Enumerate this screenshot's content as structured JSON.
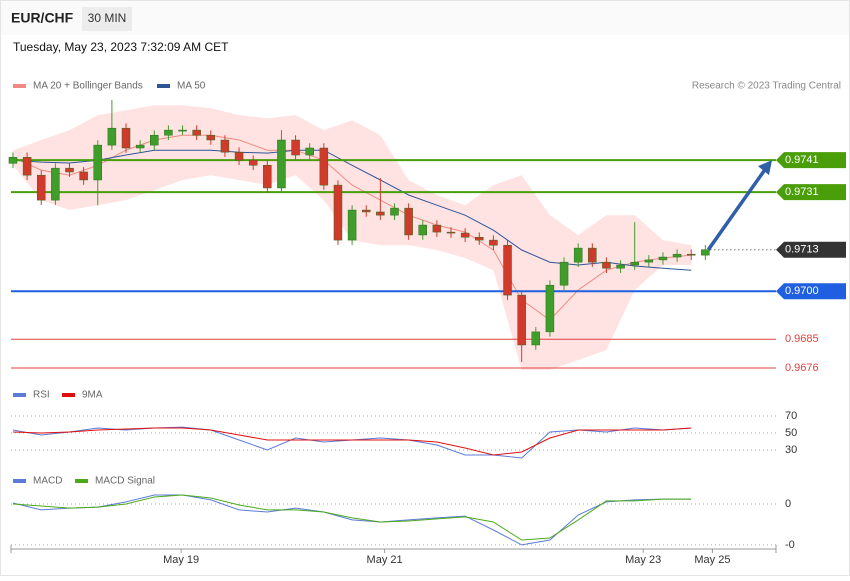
{
  "header": {
    "symbol": "EUR/CHF",
    "timeframe": "30 MIN",
    "timestamp": "Tuesday, May 23, 2023 7:32:09 AM CET",
    "credit": "Research © 2023 Trading Central"
  },
  "chart_data": [
    {
      "type": "candlestick",
      "xlim": [
        -0.14,
        54
      ],
      "xticks": [
        {
          "value": 11.9,
          "label": "May 19"
        },
        {
          "value": 26.3,
          "label": "May 21"
        },
        {
          "value": 44.6,
          "label": "May 23"
        },
        {
          "value": 49.5,
          "label": "May 25"
        }
      ],
      "ylim": [
        0.9673,
        0.9762
      ],
      "up_color": "#3f9e2a",
      "down_color": "#d03a2a",
      "open": [
        0.974,
        0.97419,
        0.97363,
        0.97285,
        0.97385,
        0.97373,
        0.97348,
        0.97457,
        0.9751,
        0.97448,
        0.97457,
        0.97488,
        0.97504,
        0.97504,
        0.97488,
        0.97473,
        0.97435,
        0.9741,
        0.97394,
        0.97323,
        0.97473,
        0.97426,
        0.97448,
        0.97332,
        0.9716,
        0.97254,
        0.97248,
        0.97238,
        0.9726,
        0.97176,
        0.97207,
        0.97185,
        0.97182,
        0.97169,
        0.9716,
        0.97144,
        0.96988,
        0.96832,
        0.96873,
        0.97019,
        0.97091,
        0.97135,
        0.97091,
        0.97072,
        0.97082,
        0.97091,
        0.97098,
        0.97107,
        0.97116,
        0.97113
      ],
      "high": [
        0.97434,
        0.97434,
        0.97378,
        0.974,
        0.974,
        0.97388,
        0.97472,
        0.97598,
        0.97525,
        0.97472,
        0.97503,
        0.97519,
        0.97519,
        0.97519,
        0.97503,
        0.97488,
        0.9745,
        0.97425,
        0.97409,
        0.97504,
        0.97488,
        0.97463,
        0.97463,
        0.97347,
        0.97269,
        0.97269,
        0.97354,
        0.97275,
        0.97275,
        0.97222,
        0.97222,
        0.972,
        0.97197,
        0.97184,
        0.97175,
        0.97159,
        0.97003,
        0.96888,
        0.97034,
        0.97106,
        0.9715,
        0.9715,
        0.97106,
        0.97097,
        0.97216,
        0.97113,
        0.97122,
        0.97131,
        0.97131,
        0.97145
      ],
      "low": [
        0.97385,
        0.97348,
        0.9727,
        0.9727,
        0.97358,
        0.97333,
        0.97269,
        0.97442,
        0.97433,
        0.97433,
        0.97442,
        0.97473,
        0.97489,
        0.97473,
        0.97458,
        0.9742,
        0.97395,
        0.97379,
        0.97308,
        0.97308,
        0.97411,
        0.97411,
        0.97317,
        0.97145,
        0.97145,
        0.97233,
        0.97223,
        0.97223,
        0.97161,
        0.97161,
        0.9717,
        0.97167,
        0.97154,
        0.97145,
        0.97129,
        0.96973,
        0.96779,
        0.96817,
        0.96858,
        0.97004,
        0.97076,
        0.97076,
        0.97057,
        0.97057,
        0.97067,
        0.97076,
        0.97083,
        0.97092,
        0.97098,
        0.97098
      ],
      "close": [
        0.97419,
        0.97363,
        0.97285,
        0.97385,
        0.97373,
        0.97348,
        0.97457,
        0.9751,
        0.97448,
        0.97457,
        0.97488,
        0.97504,
        0.97504,
        0.97488,
        0.97473,
        0.97435,
        0.9741,
        0.97394,
        0.97323,
        0.97473,
        0.97426,
        0.97448,
        0.97332,
        0.9716,
        0.97254,
        0.97248,
        0.97238,
        0.9726,
        0.97176,
        0.97207,
        0.97185,
        0.97182,
        0.97169,
        0.9716,
        0.97144,
        0.96988,
        0.96832,
        0.96873,
        0.97019,
        0.97091,
        0.97135,
        0.97091,
        0.97072,
        0.97082,
        0.97091,
        0.97098,
        0.97107,
        0.97116,
        0.97113,
        0.9713
      ],
      "overlays": {
        "x": [
          0,
          2,
          4,
          6,
          8,
          10,
          12,
          14,
          16,
          18,
          20,
          22,
          24,
          26,
          28,
          30,
          32,
          34,
          36,
          38,
          40,
          42,
          44,
          46,
          48
        ],
        "series": [
          {
            "name": "MA 20 + Bollinger Bands",
            "color": "#f08a80",
            "band_color": "#ffe3e3",
            "values": [
              0.97419,
              0.97379,
              0.97363,
              0.97394,
              0.97441,
              0.97473,
              0.97488,
              0.97488,
              0.97473,
              0.97441,
              0.97441,
              0.9741,
              0.97332,
              0.97285,
              0.97238,
              0.97207,
              0.97185,
              0.97129,
              0.96973,
              0.9691,
              0.97004,
              0.97066,
              0.97091,
              0.97104,
              0.97113
            ],
            "upper": [
              0.97441,
              0.97473,
              0.97504,
              0.97551,
              0.97566,
              0.97582,
              0.97582,
              0.97572,
              0.97551,
              0.97541,
              0.97551,
              0.97504,
              0.97535,
              0.97488,
              0.97348,
              0.97301,
              0.97269,
              0.97332,
              0.97363,
              0.97238,
              0.97176,
              0.97238,
              0.97238,
              0.9716,
              0.97144
            ],
            "lower": [
              0.97394,
              0.97285,
              0.97254,
              0.97269,
              0.97285,
              0.97316,
              0.97348,
              0.97363,
              0.97348,
              0.97332,
              0.97363,
              0.97285,
              0.9716,
              0.97144,
              0.97144,
              0.97129,
              0.97104,
              0.97066,
              0.96754,
              0.96754,
              0.96785,
              0.96816,
              0.97004,
              0.97082,
              0.97082
            ]
          },
          {
            "name": "MA 50",
            "color": "#2f5597",
            "values": [
              0.9741,
              0.97404,
              0.97401,
              0.9741,
              0.97426,
              0.97441,
              0.97441,
              0.97441,
              0.97435,
              0.97432,
              0.97441,
              0.97441,
              0.97394,
              0.97348,
              0.97301,
              0.97269,
              0.97238,
              0.97191,
              0.97129,
              0.97091,
              0.97082,
              0.97091,
              0.97079,
              0.97072,
              0.97066
            ]
          }
        ]
      },
      "levels": [
        {
          "value": 0.9741,
          "label": "0.9741",
          "color": "#4a9e0a",
          "style": "solid",
          "boxed": true
        },
        {
          "value": 0.9731,
          "label": "0.9731",
          "color": "#4a9e0a",
          "style": "solid",
          "boxed": true
        },
        {
          "value": 0.9713,
          "label": "0.9713",
          "color": "#333333",
          "style": "dotted",
          "boxed": true
        },
        {
          "value": 0.97,
          "label": "0.9700",
          "color": "#1f5fe0",
          "style": "solid",
          "boxed": true
        },
        {
          "value": 0.9685,
          "label": "0.9685",
          "color": "#e04040",
          "style": "solid",
          "boxed": false
        },
        {
          "value": 0.9676,
          "label": "0.9676",
          "color": "#e04040",
          "style": "solid",
          "boxed": false
        }
      ]
    },
    {
      "type": "line",
      "xlim": [
        -0.14,
        54
      ],
      "ylim": [
        10,
        80
      ],
      "yticks": [
        30,
        50,
        70
      ],
      "x": [
        0,
        2,
        4,
        6,
        8,
        10,
        12,
        14,
        16,
        18,
        20,
        22,
        24,
        26,
        28,
        30,
        32,
        34,
        36,
        38,
        40,
        42,
        44,
        46,
        48
      ],
      "series": [
        {
          "name": "RSI",
          "color": "#5b7bd8",
          "values": [
            53.5,
            47.6,
            51.2,
            55.9,
            53.5,
            55.9,
            57,
            53.5,
            41.8,
            30,
            44.1,
            39.4,
            41.8,
            44.1,
            41.8,
            35.9,
            24.1,
            24.1,
            20.6,
            51.2,
            53.5,
            51.2,
            55.9,
            53.5,
            55.9
          ]
        },
        {
          "name": "9MA",
          "color": "#e01010",
          "values": [
            51.2,
            50,
            51.2,
            53.5,
            54.7,
            55.9,
            55.9,
            53.5,
            47.6,
            41.8,
            41.8,
            41.8,
            41.8,
            41.8,
            41.8,
            39.4,
            32.4,
            24.1,
            27.6,
            44.1,
            53.5,
            53.5,
            53.5,
            53.5,
            55.9
          ]
        }
      ]
    },
    {
      "type": "line",
      "xlim": [
        -0.14,
        54
      ],
      "ylim": [
        -0.0022,
        0.0005
      ],
      "yticks": [
        {
          "value": -0.002,
          "label": "-0"
        },
        0
      ],
      "x": [
        0,
        2,
        4,
        6,
        8,
        10,
        12,
        14,
        16,
        18,
        20,
        22,
        24,
        26,
        28,
        30,
        32,
        34,
        36,
        38,
        40,
        42,
        44,
        46,
        48
      ],
      "series": [
        {
          "name": "MACD",
          "color": "#5b7bd8",
          "values": [
            5e-05,
            -0.00029,
            -0.0002,
            -0.00015,
            0.0001,
            0.00044,
            0.00044,
            0.0002,
            -0.00029,
            -0.00039,
            -0.0002,
            -0.00039,
            -0.00078,
            -0.00088,
            -0.00078,
            -0.00068,
            -0.00059,
            -0.00127,
            -0.002,
            -0.00176,
            -0.00054,
            0.0001,
            0.0002,
            0.00024,
            0.00024
          ]
        },
        {
          "name": "MACD Signal",
          "color": "#4caa1a",
          "values": [
            0,
            -0.0001,
            -0.0002,
            -0.00015,
            0,
            0.00034,
            0.00044,
            0.00029,
            -5e-05,
            -0.00029,
            -0.00029,
            -0.00039,
            -0.00068,
            -0.00088,
            -0.00083,
            -0.00073,
            -0.00063,
            -0.00088,
            -0.00176,
            -0.00166,
            -0.00078,
            0.00015,
            0.00015,
            0.00024,
            0.00024
          ]
        }
      ]
    }
  ]
}
